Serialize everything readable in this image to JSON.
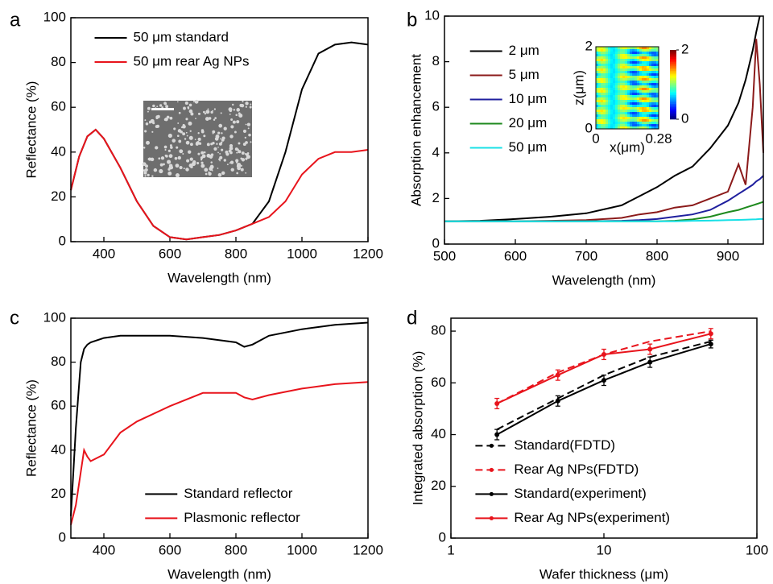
{
  "chart_data": [
    {
      "type": "line",
      "panel_label": "a",
      "xlabel": "Wavelength (nm)",
      "ylabel": "Reflectance (%)",
      "xlim": [
        300,
        1200
      ],
      "xticks": [
        400,
        600,
        800,
        1000,
        1200
      ],
      "ylim": [
        0,
        100
      ],
      "yticks": [
        0,
        20,
        40,
        60,
        80,
        100
      ],
      "legend": "upper left",
      "x": [
        300,
        325,
        350,
        375,
        400,
        450,
        500,
        550,
        600,
        650,
        700,
        750,
        800,
        850,
        900,
        950,
        1000,
        1050,
        1100,
        1150,
        1200
      ],
      "series": [
        {
          "name": "50 μm standard",
          "color": "#000000",
          "values": [
            23,
            38,
            47,
            50,
            46,
            33,
            18,
            7,
            2,
            1,
            2,
            3,
            5,
            8,
            18,
            40,
            68,
            84,
            88,
            89,
            88
          ]
        },
        {
          "name": "50 μm rear Ag NPs",
          "color": "#e8141c",
          "values": [
            23,
            38,
            47,
            50,
            46,
            33,
            18,
            7,
            2,
            1,
            2,
            3,
            5,
            8,
            11,
            18,
            30,
            37,
            40,
            40,
            41
          ]
        }
      ]
    },
    {
      "type": "line",
      "panel_label": "b",
      "xlabel": "Wavelength (nm)",
      "ylabel": "Absorption enhancement",
      "xlim": [
        500,
        950
      ],
      "xticks": [
        500,
        600,
        700,
        800,
        900
      ],
      "ylim": [
        0,
        10
      ],
      "yticks": [
        0,
        2,
        4,
        6,
        8,
        10
      ],
      "legend": "upper left",
      "x": [
        500,
        550,
        600,
        650,
        700,
        750,
        775,
        800,
        825,
        850,
        875,
        900,
        915,
        925,
        935,
        940,
        945,
        950
      ],
      "series": [
        {
          "name": "2 μm",
          "color": "#000000",
          "values": [
            1,
            1.02,
            1.1,
            1.2,
            1.35,
            1.7,
            2.1,
            2.5,
            3,
            3.4,
            4.2,
            5.2,
            6.2,
            7.2,
            8.5,
            9.3,
            10,
            null
          ]
        },
        {
          "name": "5 μm",
          "color": "#8b1a1a",
          "values": [
            1,
            1,
            1,
            1.02,
            1.05,
            1.15,
            1.3,
            1.4,
            1.6,
            1.7,
            2,
            2.3,
            3.5,
            2.6,
            6,
            9,
            7,
            4
          ]
        },
        {
          "name": "10 μm",
          "color": "#1f1f9e",
          "values": [
            1,
            1,
            1,
            1,
            1,
            1.02,
            1.05,
            1.1,
            1.2,
            1.3,
            1.5,
            1.9,
            2.2,
            2.4,
            2.6,
            2.75,
            2.85,
            3
          ]
        },
        {
          "name": "20 μm",
          "color": "#1e8a1e",
          "values": [
            1,
            1,
            1,
            1,
            1,
            1,
            1,
            1,
            1.02,
            1.08,
            1.2,
            1.4,
            1.5,
            1.6,
            1.7,
            1.75,
            1.8,
            1.85
          ]
        },
        {
          "name": "50 μm",
          "color": "#19e0e6",
          "values": [
            1,
            1,
            1,
            1,
            1,
            1,
            1,
            1,
            1,
            1.02,
            1.03,
            1.05,
            1.06,
            1.07,
            1.08,
            1.09,
            1.1,
            1.1
          ]
        }
      ],
      "inset": {
        "xlabel": "x(μm)",
        "ylabel": "z(μm)",
        "xlim": [
          0,
          0.28
        ],
        "xticks": [
          0,
          0.28
        ],
        "ylim": [
          0,
          2
        ],
        "yticks": [
          0,
          2
        ],
        "clim": [
          0,
          2
        ],
        "cticks": [
          0,
          2
        ]
      }
    },
    {
      "type": "line",
      "panel_label": "c",
      "xlabel": "Wavelength (nm)",
      "ylabel": "Reflectance (%)",
      "xlim": [
        300,
        1200
      ],
      "xticks": [
        400,
        600,
        800,
        1000,
        1200
      ],
      "ylim": [
        0,
        100
      ],
      "yticks": [
        0,
        20,
        40,
        60,
        80,
        100
      ],
      "legend": "lower center",
      "x": [
        300,
        315,
        330,
        340,
        350,
        360,
        400,
        450,
        500,
        600,
        700,
        800,
        825,
        850,
        900,
        1000,
        1100,
        1200
      ],
      "series": [
        {
          "name": "Standard reflector",
          "color": "#000000",
          "values": [
            10,
            50,
            80,
            86,
            88,
            89,
            91,
            92,
            92,
            92,
            91,
            89,
            87,
            88,
            92,
            95,
            97,
            98
          ]
        },
        {
          "name": "Plasmonic reflector",
          "color": "#e8141c",
          "values": [
            6,
            15,
            30,
            40,
            37,
            35,
            38,
            48,
            53,
            60,
            66,
            66,
            64,
            63,
            65,
            68,
            70,
            71
          ]
        }
      ]
    },
    {
      "type": "line",
      "panel_label": "d",
      "xlabel": "Wafer thickness (μm)",
      "ylabel": "Integrated absorption (%)",
      "xlog": true,
      "xlim": [
        1,
        100
      ],
      "xticks": [
        1,
        10,
        100
      ],
      "ylim": [
        0,
        85
      ],
      "yticks": [
        0,
        20,
        40,
        60,
        80
      ],
      "legend": "lower left",
      "x": [
        2,
        5,
        10,
        20,
        50
      ],
      "series": [
        {
          "name": "Standard(FDTD)",
          "color": "#000000",
          "dash": true,
          "values": [
            42,
            54,
            63,
            70,
            76
          ]
        },
        {
          "name": "Rear Ag NPs(FDTD)",
          "color": "#e8141c",
          "dash": true,
          "values": [
            52,
            64,
            71,
            76,
            80
          ]
        },
        {
          "name": "Standard(experiment)",
          "color": "#000000",
          "markers": true,
          "values": [
            40,
            53,
            61,
            68,
            75
          ],
          "errors": [
            2,
            2,
            2,
            2,
            1.5
          ]
        },
        {
          "name": "Rear Ag NPs(experiment)",
          "color": "#e8141c",
          "markers": true,
          "values": [
            52,
            63,
            71,
            73,
            79
          ],
          "errors": [
            2,
            2,
            2,
            2,
            2
          ]
        }
      ]
    }
  ]
}
